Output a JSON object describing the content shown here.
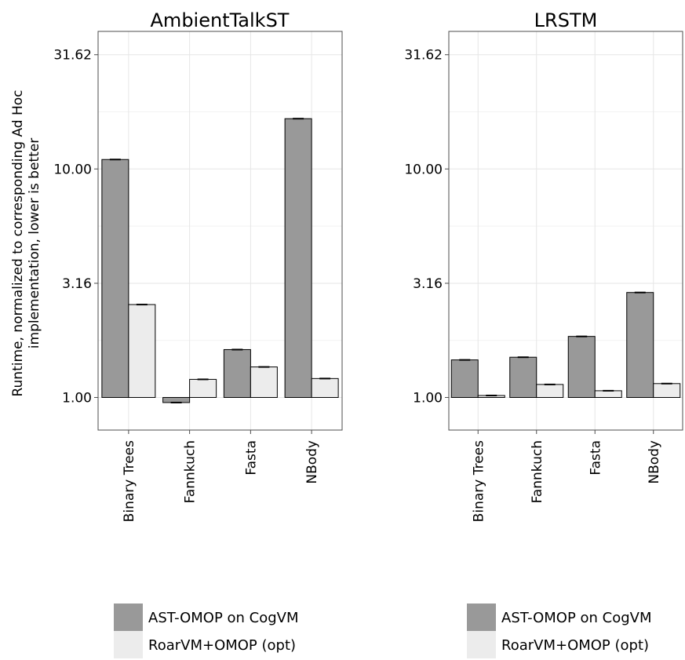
{
  "ylabel_lines": [
    "Runtime, normalized to corresponding Ad Hoc",
    "implementation, lower is better"
  ],
  "colors": {
    "ast_omop": "#999999",
    "roarvm": "#ececec",
    "grid": "#e6e6e6",
    "border": "#4d4d4d"
  },
  "chart_data": [
    {
      "type": "bar",
      "title": "AmbientTalkST",
      "scale": "log",
      "baseline": 1.0,
      "ylim": [
        0.72,
        40
      ],
      "yticks": [
        "1.00",
        "3.16",
        "10.00",
        "31.62"
      ],
      "categories": [
        "Binary Trees",
        "Fannkuch",
        "Fasta",
        "NBody"
      ],
      "series": [
        {
          "name": "AST-OMOP on CogVM",
          "values": [
            11.0,
            0.95,
            1.62,
            16.6
          ]
        },
        {
          "name": "RoarVM+OMOP (opt)",
          "values": [
            2.55,
            1.2,
            1.36,
            1.21
          ]
        }
      ],
      "grid": true,
      "legend": "bottom"
    },
    {
      "type": "bar",
      "title": "LRSTM",
      "scale": "log",
      "baseline": 1.0,
      "ylim": [
        0.72,
        40
      ],
      "yticks": [
        "1.00",
        "3.16",
        "10.00",
        "31.62"
      ],
      "categories": [
        "Binary Trees",
        "Fannkuch",
        "Fasta",
        "NBody"
      ],
      "series": [
        {
          "name": "AST-OMOP on CogVM",
          "values": [
            1.46,
            1.5,
            1.85,
            2.88
          ]
        },
        {
          "name": "RoarVM+OMOP (opt)",
          "values": [
            1.02,
            1.14,
            1.07,
            1.15
          ]
        }
      ],
      "grid": true,
      "legend": "bottom"
    }
  ]
}
